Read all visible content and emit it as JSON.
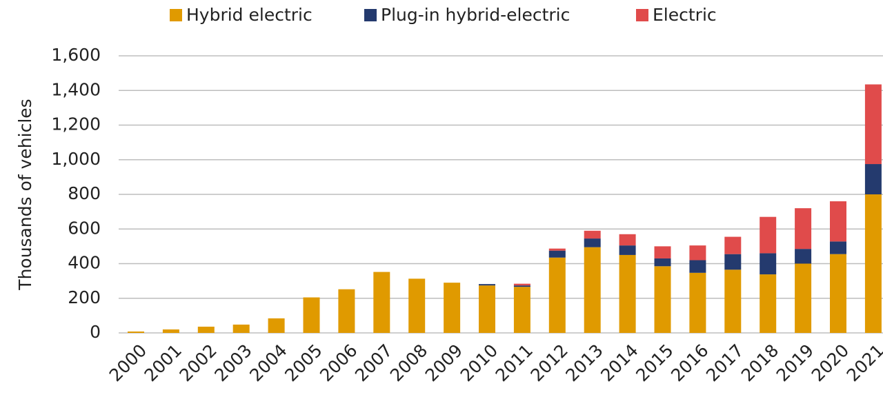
{
  "chart_data": {
    "type": "stacked_bar",
    "y_label": "Thousands of vehicles",
    "categories": [
      "2000",
      "2001",
      "2002",
      "2003",
      "2004",
      "2005",
      "2006",
      "2007",
      "2008",
      "2009",
      "2010",
      "2011",
      "2012",
      "2013",
      "2014",
      "2015",
      "2016",
      "2017",
      "2018",
      "2019",
      "2020",
      "2021"
    ],
    "series": [
      {
        "name": "Hybrid electric",
        "color": "#e09a00",
        "values": [
          8,
          20,
          36,
          48,
          84,
          205,
          252,
          352,
          313,
          290,
          274,
          266,
          435,
          495,
          450,
          385,
          347,
          365,
          338,
          400,
          455,
          800
        ]
      },
      {
        "name": "Plug-in hybrid-electric",
        "color": "#243a6e",
        "values": [
          0,
          0,
          0,
          0,
          0,
          0,
          0,
          0,
          0,
          0,
          8,
          8,
          40,
          50,
          55,
          45,
          73,
          90,
          122,
          85,
          73,
          175
        ]
      },
      {
        "name": "Electric",
        "color": "#e04b4b",
        "values": [
          0,
          0,
          0,
          0,
          0,
          0,
          0,
          0,
          0,
          0,
          0,
          10,
          12,
          45,
          65,
          70,
          85,
          100,
          210,
          235,
          232,
          460
        ]
      }
    ],
    "ylim": [
      0,
      1600
    ],
    "yticks": [
      0,
      200,
      400,
      600,
      800,
      {
        "value": 1000,
        "label": "1,000"
      },
      {
        "value": 1200,
        "label": "1,200"
      },
      {
        "value": 1400,
        "label": "1,400"
      },
      {
        "value": 1600,
        "label": "1,600"
      }
    ],
    "grid": true,
    "legend": "top"
  }
}
